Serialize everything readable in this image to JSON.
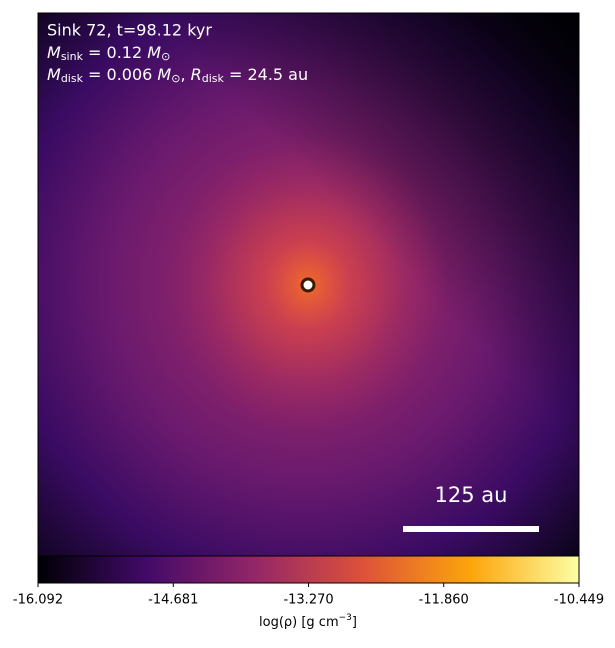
{
  "chart_data": {
    "type": "image",
    "annotations": {
      "title": "Sink 72, t=98.12 kyr",
      "sink_mass": {
        "symbol": "M",
        "subscript": "sink",
        "text": " = 0.12 ",
        "unit": "M",
        "unit_subscript": "⊙"
      },
      "disk": {
        "symbol": "M",
        "subscript": "disk",
        "text": " = 0.006 ",
        "unit": "M",
        "unit_subscript": "⊙",
        "sep": ", ",
        "symbol2": "R",
        "subscript2": "disk",
        "text2": " = 24.5 au"
      }
    },
    "scale_bar_label": "125 au",
    "colorbar": {
      "clim": [
        -16.092,
        -10.449
      ],
      "ticks": [
        -16.092,
        -14.681,
        {
          "value": -13.27,
          "label": "-13.270"
        },
        {
          "value": -11.86,
          "label": "-11.860"
        },
        -10.449
      ],
      "label": {
        "text": "log(ρ) [g cm",
        "superscript": "−3",
        "end": "]"
      },
      "colormap": "inferno"
    }
  }
}
